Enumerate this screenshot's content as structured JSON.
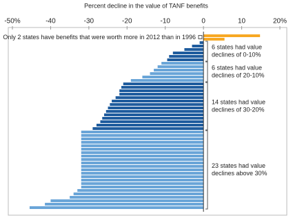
{
  "chart_data": {
    "type": "hbar",
    "title": "Percent decline in the value of TANF benefits",
    "xlim": [
      -50,
      20
    ],
    "xticks": [
      {
        "value": -50,
        "label": "-50%"
      },
      -40,
      -30,
      -20,
      -10,
      0,
      10,
      {
        "value": 20,
        "label": "20%"
      }
    ],
    "values": [
      14.8,
      5.5,
      -1,
      -3,
      -5,
      -8,
      -9,
      -9.5,
      -11,
      -12,
      -13,
      -14,
      -16,
      -19,
      -21,
      -21.5,
      -22,
      -22,
      -23,
      -24,
      -24.5,
      -25,
      -25.5,
      -26,
      -26.5,
      -27,
      -28,
      -29,
      -32,
      -32,
      -32,
      -32,
      -32,
      -32,
      -32,
      -32,
      -32,
      -32,
      -32,
      -32,
      -32,
      -32,
      -32,
      -32,
      -32,
      -33,
      -34,
      -35,
      -40,
      -41.5,
      -45.5
    ],
    "colors": [
      "#f7a823",
      "#f7a823",
      "#1f5c9e",
      "#1f5c9e",
      "#1f5c9e",
      "#1f5c9e",
      "#1f5c9e",
      "#1f5c9e",
      "#6aa5d8",
      "#6aa5d8",
      "#6aa5d8",
      "#6aa5d8",
      "#6aa5d8",
      "#6aa5d8",
      "#1f5c9e",
      "#1f5c9e",
      "#1f5c9e",
      "#1f5c9e",
      "#1f5c9e",
      "#1f5c9e",
      "#1f5c9e",
      "#1f5c9e",
      "#1f5c9e",
      "#1f5c9e",
      "#1f5c9e",
      "#1f5c9e",
      "#1f5c9e",
      "#1f5c9e",
      "#6aa5d8",
      "#6aa5d8",
      "#6aa5d8",
      "#6aa5d8",
      "#6aa5d8",
      "#6aa5d8",
      "#6aa5d8",
      "#6aa5d8",
      "#6aa5d8",
      "#6aa5d8",
      "#6aa5d8",
      "#6aa5d8",
      "#6aa5d8",
      "#6aa5d8",
      "#6aa5d8",
      "#6aa5d8",
      "#6aa5d8",
      "#6aa5d8",
      "#6aa5d8",
      "#6aa5d8",
      "#6aa5d8",
      "#6aa5d8",
      "#6aa5d8"
    ],
    "annotations": [
      [
        "Only 2 states have benefits that were worth more in 2012 than in 1996"
      ],
      [
        "6 states had value",
        "declines of 0-10%"
      ],
      [
        "6 states had value",
        "declines of 20-10%"
      ],
      [
        "14 states had value",
        "declines of 30-20%"
      ],
      [
        "23 states had value",
        "declines above 30%"
      ]
    ]
  }
}
